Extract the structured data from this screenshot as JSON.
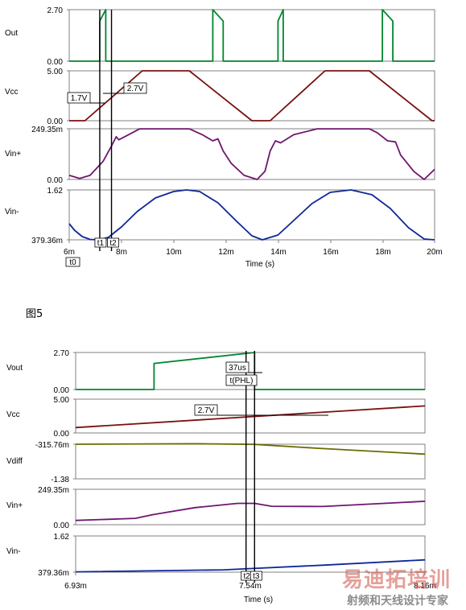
{
  "figure_label": "图5",
  "watermark": {
    "main": "易迪拓培训",
    "sub": "射频和天线设计专家"
  },
  "colors": {
    "out": "#00852d",
    "vcc": "#7a1010",
    "vin_plus": "#6e1670",
    "vin_minus": "#0f2897",
    "vdiff": "#6b6b00",
    "frame": "#808080",
    "cursor": "#000000"
  },
  "chart_data": [
    {
      "type": "line",
      "xlabel": "Time (s)",
      "x_ticks": [
        "6m",
        "8m",
        "10m",
        "12m",
        "14m",
        "16m",
        "18m",
        "20m"
      ],
      "xlim": [
        0.006,
        0.02
      ],
      "panels": [
        {
          "label": "Out",
          "ymin_label": "0.00",
          "ymax_label": "2.70",
          "ylim": [
            0,
            2.7
          ],
          "points": [
            [
              0.006,
              0
            ],
            [
              0.00717,
              0
            ],
            [
              0.00717,
              2.1
            ],
            [
              0.0074,
              2.7
            ],
            [
              0.0074,
              0
            ],
            [
              0.0115,
              0
            ],
            [
              0.0115,
              2.7
            ],
            [
              0.0119,
              2.1
            ],
            [
              0.0119,
              0
            ],
            [
              0.014,
              0
            ],
            [
              0.014,
              2.1
            ],
            [
              0.0142,
              2.7
            ],
            [
              0.0142,
              0
            ],
            [
              0.018,
              0
            ],
            [
              0.018,
              2.7
            ],
            [
              0.0184,
              2.1
            ],
            [
              0.0184,
              0
            ],
            [
              0.02,
              0
            ]
          ]
        },
        {
          "label": "Vcc",
          "ymin_label": "0.00",
          "ymax_label": "5.00",
          "ylim": [
            0,
            5.0
          ],
          "points": [
            [
              0.006,
              0
            ],
            [
              0.0066,
              0
            ],
            [
              0.0088,
              5.0
            ],
            [
              0.0106,
              5.0
            ],
            [
              0.013,
              0
            ],
            [
              0.0137,
              0
            ],
            [
              0.0158,
              5.0
            ],
            [
              0.0175,
              5.0
            ],
            [
              0.0199,
              0
            ],
            [
              0.02,
              0
            ]
          ]
        },
        {
          "label": "Vin+",
          "ymin_label": "0.00",
          "ymax_label": "249.35m",
          "ylim": [
            0,
            0.24935
          ],
          "points": [
            [
              0.006,
              0.02
            ],
            [
              0.0064,
              0.005
            ],
            [
              0.0068,
              0.02
            ],
            [
              0.0073,
              0.09
            ],
            [
              0.0076,
              0.16
            ],
            [
              0.0078,
              0.21
            ],
            [
              0.0079,
              0.195
            ],
            [
              0.0082,
              0.215
            ],
            [
              0.0087,
              0.249
            ],
            [
              0.0106,
              0.249
            ],
            [
              0.0111,
              0.22
            ],
            [
              0.0115,
              0.19
            ],
            [
              0.0117,
              0.2
            ],
            [
              0.0119,
              0.14
            ],
            [
              0.0122,
              0.08
            ],
            [
              0.0127,
              0.02
            ],
            [
              0.0132,
              0.0
            ],
            [
              0.0135,
              0.04
            ],
            [
              0.0137,
              0.14
            ],
            [
              0.0139,
              0.19
            ],
            [
              0.0141,
              0.18
            ],
            [
              0.0146,
              0.22
            ],
            [
              0.0155,
              0.249
            ],
            [
              0.0175,
              0.249
            ],
            [
              0.0178,
              0.23
            ],
            [
              0.0182,
              0.19
            ],
            [
              0.0185,
              0.185
            ],
            [
              0.0187,
              0.12
            ],
            [
              0.0192,
              0.04
            ],
            [
              0.0196,
              0.0
            ],
            [
              0.02,
              0.05
            ]
          ]
        },
        {
          "label": "Vin-",
          "ymin_label": "379.36m",
          "ymax_label": "1.62",
          "ylim": [
            0.37936,
            1.62
          ],
          "points": [
            [
              0.006,
              0.78
            ],
            [
              0.0062,
              0.62
            ],
            [
              0.0065,
              0.46
            ],
            [
              0.0068,
              0.39
            ],
            [
              0.0071,
              0.38
            ],
            [
              0.0075,
              0.44
            ],
            [
              0.008,
              0.7
            ],
            [
              0.0086,
              1.08
            ],
            [
              0.0093,
              1.42
            ],
            [
              0.01,
              1.58
            ],
            [
              0.0105,
              1.62
            ],
            [
              0.011,
              1.58
            ],
            [
              0.0117,
              1.3
            ],
            [
              0.0124,
              0.85
            ],
            [
              0.013,
              0.48
            ],
            [
              0.0134,
              0.38
            ],
            [
              0.014,
              0.5
            ],
            [
              0.0146,
              0.86
            ],
            [
              0.0153,
              1.28
            ],
            [
              0.016,
              1.56
            ],
            [
              0.0168,
              1.62
            ],
            [
              0.0176,
              1.5
            ],
            [
              0.0183,
              1.16
            ],
            [
              0.019,
              0.68
            ],
            [
              0.0196,
              0.4
            ],
            [
              0.02,
              0.38
            ]
          ]
        }
      ],
      "cursors": [
        {
          "label": "t1",
          "x": 0.00717
        },
        {
          "label": "t2",
          "x": 0.00762
        }
      ],
      "origin_label": "t0",
      "annotations": [
        "1.7V",
        "2.7V"
      ]
    },
    {
      "type": "line",
      "xlabel": "Time (s)",
      "x_ticks": [
        "6.93m",
        "7.54m",
        "8.16m"
      ],
      "xlim": [
        0.00693,
        0.00816
      ],
      "panels": [
        {
          "label": "Vout",
          "ymin_label": "0.00",
          "ymax_label": "2.70",
          "ylim": [
            0,
            2.7
          ],
          "points": [
            [
              0.00693,
              0
            ],
            [
              0.007206,
              0
            ],
            [
              0.007206,
              1.9
            ],
            [
              0.00756,
              2.7
            ],
            [
              0.00756,
              0
            ],
            [
              0.00816,
              0
            ]
          ]
        },
        {
          "label": "Vcc",
          "ymin_label": "0.00",
          "ymax_label": "5.00",
          "ylim": [
            0,
            5.0
          ],
          "points": [
            [
              0.00693,
              0.8
            ],
            [
              0.00816,
              4.0
            ]
          ]
        },
        {
          "label": "Vdiff",
          "ymin_label": "-1.38",
          "ymax_label": "-315.76m",
          "ylim": [
            -1.38,
            -0.31576
          ],
          "points": [
            [
              0.00693,
              -0.315
            ],
            [
              0.00735,
              -0.3
            ],
            [
              0.00756,
              -0.32
            ],
            [
              0.0078,
              -0.45
            ],
            [
              0.00816,
              -0.62
            ]
          ]
        },
        {
          "label": "Vin+",
          "ymin_label": "0.00",
          "ymax_label": "249.35m",
          "ylim": [
            0,
            0.24935
          ],
          "points": [
            [
              0.00693,
              0.03
            ],
            [
              0.00714,
              0.045
            ],
            [
              0.0072,
              0.07
            ],
            [
              0.00735,
              0.12
            ],
            [
              0.0075,
              0.15
            ],
            [
              0.00756,
              0.15
            ],
            [
              0.00762,
              0.13
            ],
            [
              0.0078,
              0.128
            ],
            [
              0.00816,
              0.165
            ]
          ]
        },
        {
          "label": "Vin-",
          "ymin_label": "379.36m",
          "ymax_label": "1.62",
          "ylim": [
            0.37936,
            1.62
          ],
          "points": [
            [
              0.00693,
              0.39
            ],
            [
              0.00745,
              0.46
            ],
            [
              0.0078,
              0.62
            ],
            [
              0.00816,
              0.8
            ]
          ]
        }
      ],
      "cursors": [
        {
          "label": "t2",
          "x": 0.00753
        },
        {
          "label": "t3",
          "x": 0.00756
        }
      ],
      "annotations": [
        "37us",
        "t(PHL)",
        "2.7V"
      ]
    }
  ]
}
